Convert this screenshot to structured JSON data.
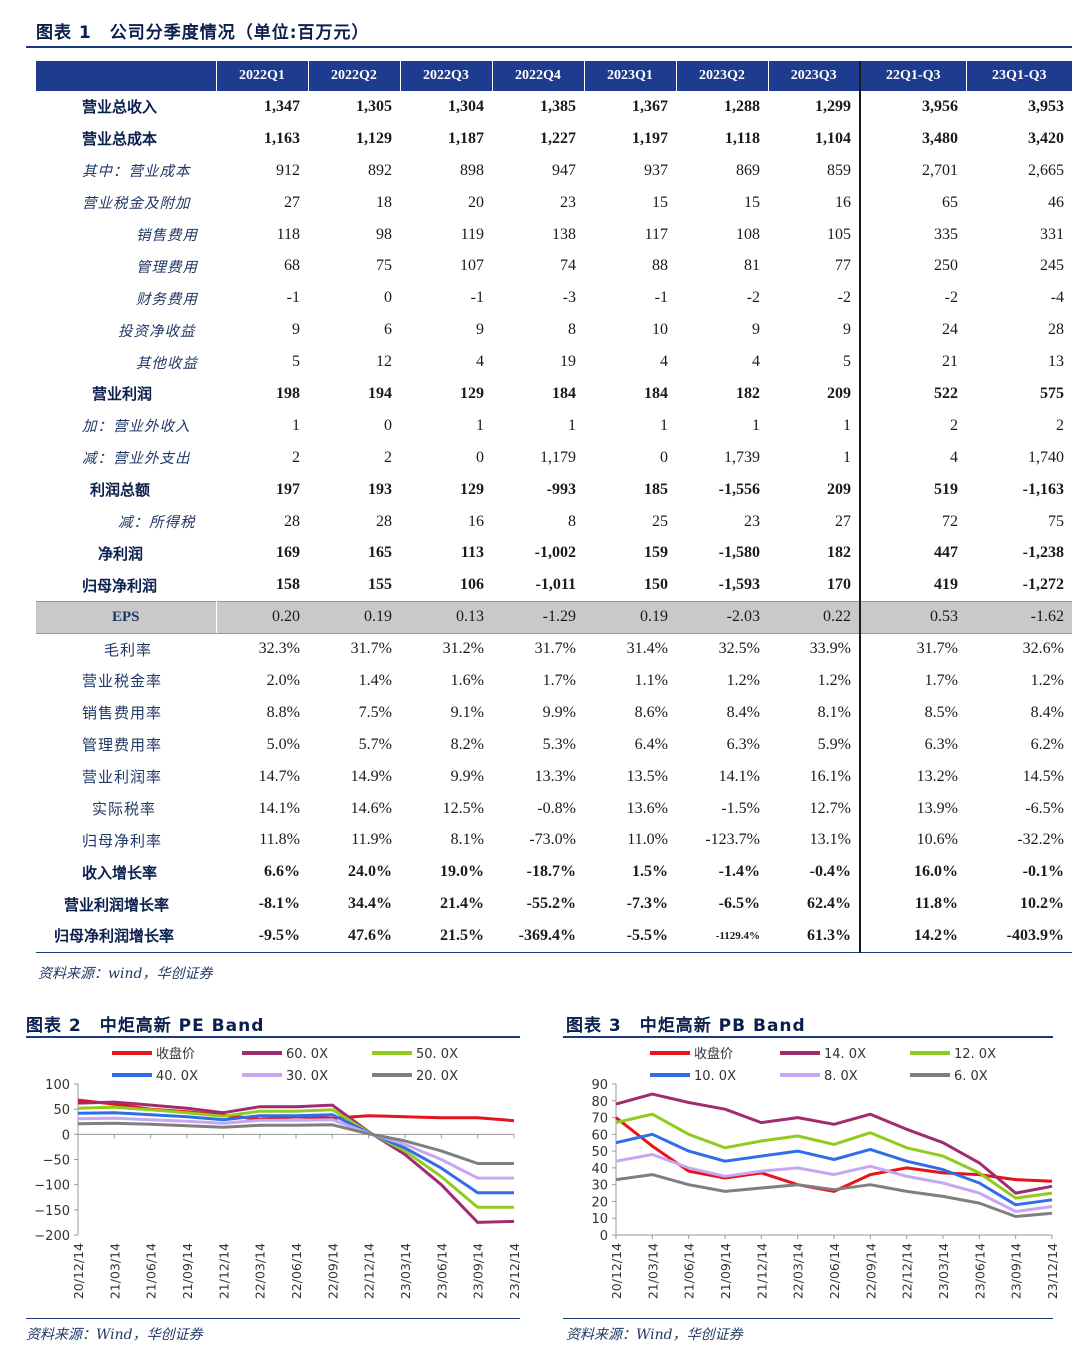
{
  "table1": {
    "title": "图表 1　公司分季度情况（单位:百万元）",
    "columns": [
      "2022Q1",
      "2022Q2",
      "2022Q3",
      "2022Q4",
      "2023Q1",
      "2023Q2",
      "2023Q3",
      "22Q1-Q3",
      "23Q1-Q3"
    ],
    "rows": [
      {
        "label": "营业总收入",
        "style": "bold",
        "indent": 46,
        "values": [
          "1,347",
          "1,305",
          "1,304",
          "1,385",
          "1,367",
          "1,288",
          "1,299",
          "3,956",
          "3,953"
        ]
      },
      {
        "label": "营业总成本",
        "style": "bold",
        "indent": 46,
        "values": [
          "1,163",
          "1,129",
          "1,187",
          "1,227",
          "1,197",
          "1,118",
          "1,104",
          "3,480",
          "3,420"
        ]
      },
      {
        "label": "其中：营业成本",
        "style": "sub",
        "indent": 46,
        "values": [
          "912",
          "892",
          "898",
          "947",
          "937",
          "869",
          "859",
          "2,701",
          "2,665"
        ]
      },
      {
        "label": "营业税金及附加",
        "style": "sub",
        "indent": 46,
        "values": [
          "27",
          "18",
          "20",
          "23",
          "15",
          "15",
          "16",
          "65",
          "46"
        ]
      },
      {
        "label": "销售费用",
        "style": "sub",
        "indent": 100,
        "values": [
          "118",
          "98",
          "119",
          "138",
          "117",
          "108",
          "105",
          "335",
          "331"
        ]
      },
      {
        "label": "管理费用",
        "style": "sub",
        "indent": 100,
        "values": [
          "68",
          "75",
          "107",
          "74",
          "88",
          "81",
          "77",
          "250",
          "245"
        ]
      },
      {
        "label": "财务费用",
        "style": "sub",
        "indent": 100,
        "values": [
          "-1",
          "0",
          "-1",
          "-3",
          "-1",
          "-2",
          "-2",
          "-2",
          "-4"
        ]
      },
      {
        "label": "投资净收益",
        "style": "sub",
        "indent": 82,
        "values": [
          "9",
          "6",
          "9",
          "8",
          "10",
          "9",
          "9",
          "24",
          "28"
        ]
      },
      {
        "label": "其他收益",
        "style": "sub",
        "indent": 100,
        "values": [
          "5",
          "12",
          "4",
          "19",
          "4",
          "4",
          "5",
          "21",
          "13"
        ]
      },
      {
        "label": "营业利润",
        "style": "bold",
        "indent": 56,
        "values": [
          "198",
          "194",
          "129",
          "184",
          "184",
          "182",
          "209",
          "522",
          "575"
        ]
      },
      {
        "label": "加：营业外收入",
        "style": "sub",
        "indent": 46,
        "values": [
          "1",
          "0",
          "1",
          "1",
          "1",
          "1",
          "1",
          "2",
          "2"
        ]
      },
      {
        "label": "减：营业外支出",
        "style": "sub",
        "indent": 46,
        "values": [
          "2",
          "2",
          "0",
          "1,179",
          "0",
          "1,739",
          "1",
          "4",
          "1,740"
        ]
      },
      {
        "label": "利润总额",
        "style": "bold",
        "indent": 54,
        "values": [
          "197",
          "193",
          "129",
          "-993",
          "185",
          "-1,556",
          "209",
          "519",
          "-1,163"
        ]
      },
      {
        "label": "减：所得税",
        "style": "sub",
        "indent": 82,
        "values": [
          "28",
          "28",
          "16",
          "8",
          "25",
          "23",
          "27",
          "72",
          "75"
        ]
      },
      {
        "label": "净利润",
        "style": "bold",
        "indent": 62,
        "values": [
          "169",
          "165",
          "113",
          "-1,002",
          "159",
          "-1,580",
          "182",
          "447",
          "-1,238"
        ]
      },
      {
        "label": "归母净利润",
        "style": "bold",
        "indent": 46,
        "values": [
          "158",
          "155",
          "106",
          "-1,011",
          "150",
          "-1,593",
          "170",
          "419",
          "-1,272"
        ]
      },
      {
        "label": "EPS",
        "style": "eps",
        "indent": 0,
        "values": [
          "0.20",
          "0.19",
          "0.13",
          "-1.29",
          "0.19",
          "-2.03",
          "0.22",
          "0.53",
          "-1.62"
        ]
      },
      {
        "label": "毛利率",
        "style": "ratio",
        "indent": 68,
        "values": [
          "32.3%",
          "31.7%",
          "31.2%",
          "31.7%",
          "31.4%",
          "32.5%",
          "33.9%",
          "31.7%",
          "32.6%"
        ]
      },
      {
        "label": "营业税金率",
        "style": "ratio",
        "indent": 46,
        "values": [
          "2.0%",
          "1.4%",
          "1.6%",
          "1.7%",
          "1.1%",
          "1.2%",
          "1.2%",
          "1.7%",
          "1.2%"
        ]
      },
      {
        "label": "销售费用率",
        "style": "ratio",
        "indent": 46,
        "values": [
          "8.8%",
          "7.5%",
          "9.1%",
          "9.9%",
          "8.6%",
          "8.4%",
          "8.1%",
          "8.5%",
          "8.4%"
        ]
      },
      {
        "label": "管理费用率",
        "style": "ratio",
        "indent": 46,
        "values": [
          "5.0%",
          "5.7%",
          "8.2%",
          "5.3%",
          "6.4%",
          "6.3%",
          "5.9%",
          "6.3%",
          "6.2%"
        ]
      },
      {
        "label": "营业利润率",
        "style": "ratio",
        "indent": 46,
        "values": [
          "14.7%",
          "14.9%",
          "9.9%",
          "13.3%",
          "13.5%",
          "14.1%",
          "16.1%",
          "13.2%",
          "14.5%"
        ]
      },
      {
        "label": "实际税率",
        "style": "ratio",
        "indent": 56,
        "values": [
          "14.1%",
          "14.6%",
          "12.5%",
          "-0.8%",
          "13.6%",
          "-1.5%",
          "12.7%",
          "13.9%",
          "-6.5%"
        ]
      },
      {
        "label": "归母净利率",
        "style": "ratio",
        "indent": 46,
        "values": [
          "11.8%",
          "11.9%",
          "8.1%",
          "-73.0%",
          "11.0%",
          "-123.7%",
          "13.1%",
          "10.6%",
          "-32.2%"
        ]
      },
      {
        "label": "收入增长率",
        "style": "bold",
        "indent": 46,
        "values": [
          "6.6%",
          "24.0%",
          "19.0%",
          "-18.7%",
          "1.5%",
          "-1.4%",
          "-0.4%",
          "16.0%",
          "-0.1%"
        ]
      },
      {
        "label": "营业利润增长率",
        "style": "bold",
        "indent": 28,
        "values": [
          "-8.1%",
          "34.4%",
          "21.4%",
          "-55.2%",
          "-7.3%",
          "-6.5%",
          "62.4%",
          "11.8%",
          "10.2%"
        ]
      },
      {
        "label": "归母净利润增长率",
        "style": "bold",
        "indent": 18,
        "values": [
          "-9.5%",
          "47.6%",
          "21.5%",
          "-369.4%",
          "-5.5%",
          "-1129.4%",
          "61.3%",
          "14.2%",
          "-403.9%"
        ]
      }
    ],
    "source": "资料来源：wind，华创证券"
  },
  "charts": {
    "pe_title": "图表 2　中炬高新 PE Band",
    "pb_title": "图表 3　中炬高新 PB Band",
    "pe_source": "资料来源：Wind，华创证券",
    "pb_source": "资料来源：Wind，华创证券"
  },
  "chart_data": [
    {
      "type": "line",
      "x": [
        "20/12/14",
        "21/03/14",
        "21/06/14",
        "21/09/14",
        "21/12/14",
        "22/03/14",
        "22/06/14",
        "22/09/14",
        "22/12/14",
        "23/03/14",
        "23/06/14",
        "23/09/14",
        "23/12/14"
      ],
      "ylim": [
        -200,
        100
      ],
      "yticks": [
        100,
        50,
        0,
        -50,
        -100,
        -150,
        -200
      ],
      "legend": "top",
      "series": [
        {
          "name": "收盘价",
          "color": "#e8141c",
          "values": [
            68,
            60,
            50,
            45,
            38,
            30,
            35,
            32,
            37,
            35,
            33,
            33,
            27
          ]
        },
        {
          "name": "60. 0X",
          "color": "#a02b6e",
          "values": [
            62,
            64,
            58,
            52,
            43,
            55,
            55,
            58,
            5,
            -40,
            -100,
            -175,
            -173
          ]
        },
        {
          "name": "50. 0X",
          "color": "#8fcc1e",
          "values": [
            52,
            54,
            49,
            43,
            36,
            46,
            46,
            49,
            4,
            -33,
            -84,
            -145,
            -145
          ]
        },
        {
          "name": "40. 0X",
          "color": "#2f6ee8",
          "values": [
            42,
            43,
            39,
            35,
            29,
            37,
            37,
            39,
            3,
            -27,
            -67,
            -116,
            -116
          ]
        },
        {
          "name": "30. 0X",
          "color": "#c7a6f2",
          "values": [
            31,
            32,
            29,
            26,
            22,
            28,
            28,
            29,
            2,
            -20,
            -50,
            -87,
            -87
          ]
        },
        {
          "name": "20. 0X",
          "color": "#7f7f7f",
          "values": [
            21,
            22,
            20,
            17,
            14,
            18,
            18,
            19,
            1,
            -13,
            -33,
            -58,
            -58
          ]
        }
      ]
    },
    {
      "type": "line",
      "x": [
        "20/12/14",
        "21/03/14",
        "21/06/14",
        "21/09/14",
        "21/12/14",
        "22/03/14",
        "22/06/14",
        "22/09/14",
        "22/12/14",
        "23/03/14",
        "23/06/14",
        "23/09/14",
        "23/12/14"
      ],
      "ylim": [
        0,
        90
      ],
      "yticks": [
        90,
        80,
        70,
        60,
        50,
        40,
        30,
        20,
        10,
        0
      ],
      "legend": "top",
      "series": [
        {
          "name": "收盘价",
          "color": "#e8141c",
          "values": [
            70,
            53,
            38,
            34,
            37,
            30,
            26,
            36,
            40,
            37,
            36,
            33,
            32
          ]
        },
        {
          "name": "14. 0X",
          "color": "#a02b6e",
          "values": [
            78,
            84,
            79,
            75,
            67,
            70,
            66,
            72,
            63,
            55,
            43,
            25,
            29
          ]
        },
        {
          "name": "12. 0X",
          "color": "#8fcc1e",
          "values": [
            67,
            72,
            60,
            52,
            56,
            59,
            54,
            61,
            52,
            47,
            37,
            22,
            25
          ]
        },
        {
          "name": "10. 0X",
          "color": "#2f6ee8",
          "values": [
            55,
            60,
            50,
            44,
            47,
            50,
            45,
            51,
            44,
            39,
            31,
            18,
            21
          ]
        },
        {
          "name": "8. 0X",
          "color": "#c7a6f2",
          "values": [
            44,
            48,
            40,
            35,
            38,
            40,
            36,
            41,
            35,
            31,
            25,
            14,
            17
          ]
        },
        {
          "name": "6. 0X",
          "color": "#7f7f7f",
          "values": [
            33,
            36,
            30,
            26,
            28,
            30,
            27,
            30,
            26,
            23,
            19,
            11,
            13
          ]
        }
      ]
    }
  ]
}
